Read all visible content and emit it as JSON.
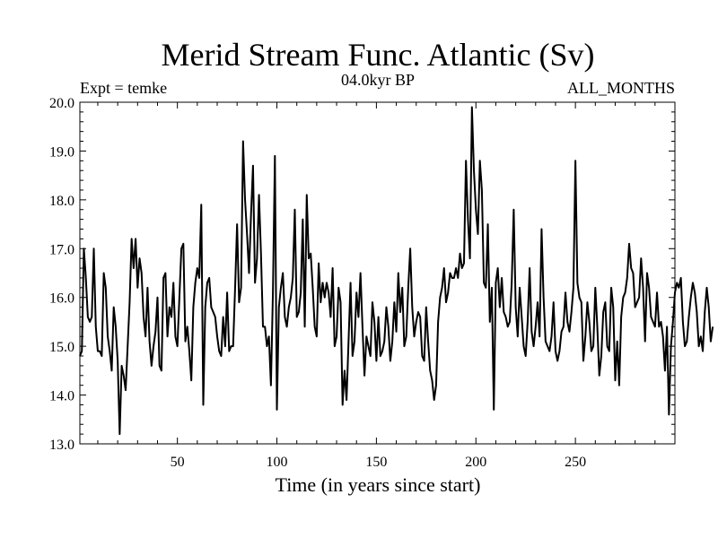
{
  "chart_data": {
    "type": "line",
    "title": "Merid Stream Func. Atlantic (Sv)",
    "subtitle_left": "Expt = temke",
    "subtitle_center": "04.0kyr BP",
    "subtitle_right": "ALL_MONTHS",
    "xlabel": "Time (in years since start)",
    "ylabel": "",
    "xlim": [
      1,
      300
    ],
    "ylim": [
      13.0,
      20.0
    ],
    "xticks": [
      50,
      100,
      150,
      200,
      250
    ],
    "xtick_labels": [
      "50",
      "100",
      "150",
      "200",
      "250"
    ],
    "yticks": [
      13.0,
      14.0,
      15.0,
      16.0,
      17.0,
      18.0,
      19.0,
      20.0
    ],
    "ytick_labels": [
      "13.0",
      "14.0",
      "15.0",
      "16.0",
      "17.0",
      "18.0",
      "19.0",
      "20.0"
    ],
    "grid": false,
    "series": [
      {
        "name": "Merid Stream Func. Atlantic",
        "x_start": 1,
        "x_step": 1,
        "values": [
          14.8,
          14.9,
          17.0,
          16.4,
          15.6,
          15.5,
          15.6,
          17.0,
          15.4,
          14.9,
          14.9,
          14.8,
          16.5,
          16.2,
          15.2,
          14.9,
          14.5,
          15.8,
          15.4,
          14.7,
          13.2,
          14.6,
          14.4,
          14.1,
          15.0,
          15.9,
          17.2,
          16.6,
          17.2,
          16.2,
          16.8,
          16.5,
          15.6,
          15.2,
          16.2,
          15.1,
          14.6,
          15.0,
          15.3,
          16.0,
          14.6,
          14.5,
          16.4,
          16.5,
          15.2,
          15.8,
          15.6,
          16.3,
          15.2,
          15.0,
          16.0,
          17.0,
          17.1,
          15.1,
          15.4,
          14.9,
          14.3,
          15.8,
          16.3,
          16.6,
          16.4,
          17.9,
          13.8,
          15.8,
          16.3,
          16.4,
          15.8,
          15.7,
          15.6,
          15.2,
          14.9,
          14.8,
          15.6,
          15.0,
          16.1,
          14.9,
          15.0,
          15.0,
          16.2,
          17.5,
          15.9,
          16.2,
          19.2,
          18.0,
          17.3,
          16.5,
          17.7,
          18.7,
          16.3,
          16.8,
          18.1,
          16.9,
          15.4,
          15.4,
          15.0,
          15.2,
          14.2,
          16.1,
          18.9,
          13.7,
          15.8,
          16.2,
          16.5,
          15.6,
          15.4,
          15.8,
          16.0,
          16.4,
          17.8,
          15.6,
          15.7,
          16.1,
          17.6,
          15.4,
          18.1,
          16.8,
          16.9,
          16.2,
          15.4,
          15.2,
          16.7,
          15.9,
          16.3,
          16.0,
          16.3,
          16.1,
          15.6,
          16.6,
          15.0,
          15.2,
          16.2,
          15.9,
          13.8,
          14.5,
          13.9,
          15.1,
          16.3,
          14.8,
          15.1,
          16.1,
          15.6,
          16.5,
          15.4,
          14.4,
          15.2,
          15.0,
          14.8,
          15.9,
          15.5,
          14.7,
          15.6,
          14.8,
          14.9,
          15.1,
          15.8,
          15.4,
          14.7,
          15.1,
          15.9,
          15.3,
          16.5,
          15.7,
          16.2,
          15.0,
          15.2,
          16.2,
          17.0,
          15.8,
          15.2,
          15.5,
          15.7,
          15.6,
          14.8,
          14.7,
          15.8,
          15.1,
          14.5,
          14.3,
          13.9,
          14.2,
          15.5,
          16.0,
          16.2,
          16.6,
          15.9,
          16.1,
          16.5,
          16.4,
          16.4,
          16.6,
          16.4,
          16.9,
          16.6,
          16.7,
          18.8,
          17.6,
          16.8,
          19.9,
          18.6,
          17.8,
          17.3,
          18.8,
          18.2,
          16.3,
          16.2,
          17.5,
          15.5,
          16.2,
          13.7,
          16.3,
          16.6,
          15.8,
          16.4,
          15.7,
          15.6,
          15.4,
          15.5,
          16.3,
          17.8,
          15.8,
          15.2,
          16.2,
          15.6,
          15.0,
          14.8,
          15.5,
          16.6,
          15.3,
          15.0,
          15.4,
          15.9,
          15.2,
          17.4,
          16.0,
          15.1,
          15.0,
          14.9,
          15.2,
          15.9,
          14.9,
          14.7,
          14.9,
          15.3,
          15.4,
          16.1,
          15.5,
          15.3,
          15.7,
          16.2,
          18.8,
          16.3,
          16.0,
          15.9,
          14.7,
          15.2,
          15.9,
          15.5,
          14.9,
          15.0,
          16.2,
          15.4,
          14.4,
          14.8,
          15.7,
          15.9,
          15.0,
          14.9,
          16.2,
          15.8,
          14.3,
          15.1,
          14.2,
          15.6,
          16.0,
          16.1,
          16.4,
          17.1,
          16.6,
          16.5,
          15.8,
          15.9,
          16.0,
          16.8,
          16.2,
          15.1,
          16.5,
          16.2,
          15.6,
          15.5,
          15.4,
          16.1,
          15.4,
          15.5,
          15.2,
          14.5,
          15.4,
          13.6,
          15.0,
          15.5,
          16.1,
          16.3,
          16.2,
          16.4,
          15.5,
          15.0,
          15.1,
          15.6,
          16.0,
          16.3,
          16.1,
          15.7,
          15.0,
          15.2,
          14.9,
          15.7,
          16.2,
          15.8,
          15.1,
          15.4
        ]
      }
    ]
  }
}
